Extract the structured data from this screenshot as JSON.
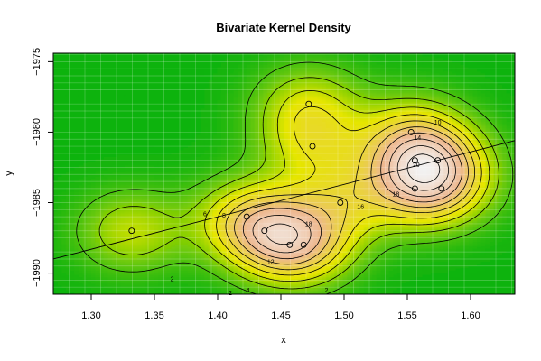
{
  "chart_data": {
    "type": "contour",
    "title": "Bivariate Kernel Density",
    "xlabel": "x",
    "ylabel": "y",
    "xlim": [
      1.27,
      1.635
    ],
    "ylim": [
      -1991.5,
      -1974.4
    ],
    "x_ticks": [
      1.3,
      1.35,
      1.4,
      1.45,
      1.5,
      1.55,
      1.6
    ],
    "x_tick_labels": [
      "1.30",
      "1.35",
      "1.40",
      "1.45",
      "1.50",
      "1.55",
      "1.60"
    ],
    "y_ticks": [
      -1975,
      -1980,
      -1985,
      -1990
    ],
    "y_tick_labels": [
      "−1975",
      "−1980",
      "−1985",
      "−1990"
    ],
    "grid": true,
    "color_scale": [
      "#0db30d",
      "#e6e600",
      "#eeb890",
      "#f2f2f2"
    ],
    "contour_levels": [
      2,
      4,
      6,
      8,
      10,
      12,
      14,
      16,
      18,
      20
    ],
    "contour_labels": [
      {
        "text": "2",
        "x": 1.364,
        "y": -1990.4
      },
      {
        "text": "4",
        "x": 1.424,
        "y": -1991.2
      },
      {
        "text": "2",
        "x": 1.41,
        "y": -1991.4
      },
      {
        "text": "2",
        "x": 1.486,
        "y": -1991.2
      },
      {
        "text": "6",
        "x": 1.39,
        "y": -1985.8
      },
      {
        "text": "8",
        "x": 1.405,
        "y": -1985.9
      },
      {
        "text": "10",
        "x": 1.574,
        "y": -1979.3
      },
      {
        "text": "14",
        "x": 1.558,
        "y": -1980.4
      },
      {
        "text": "12",
        "x": 1.442,
        "y": -1989.2
      },
      {
        "text": "16",
        "x": 1.513,
        "y": -1985.3
      },
      {
        "text": "18",
        "x": 1.541,
        "y": -1984.4
      },
      {
        "text": "18",
        "x": 1.472,
        "y": -1986.5
      },
      {
        "text": "20",
        "x": 1.557,
        "y": -1982.3
      }
    ],
    "points": [
      {
        "x": 1.332,
        "y": -1987
      },
      {
        "x": 1.423,
        "y": -1986
      },
      {
        "x": 1.437,
        "y": -1987
      },
      {
        "x": 1.457,
        "y": -1988
      },
      {
        "x": 1.468,
        "y": -1988
      },
      {
        "x": 1.472,
        "y": -1978
      },
      {
        "x": 1.475,
        "y": -1981
      },
      {
        "x": 1.497,
        "y": -1985
      },
      {
        "x": 1.553,
        "y": -1980
      },
      {
        "x": 1.556,
        "y": -1982
      },
      {
        "x": 1.556,
        "y": -1984
      },
      {
        "x": 1.574,
        "y": -1982
      },
      {
        "x": 1.577,
        "y": -1984
      }
    ],
    "regression_line": {
      "x": [
        1.27,
        1.635
      ],
      "y": [
        -1989.0,
        -1980.6
      ]
    }
  }
}
